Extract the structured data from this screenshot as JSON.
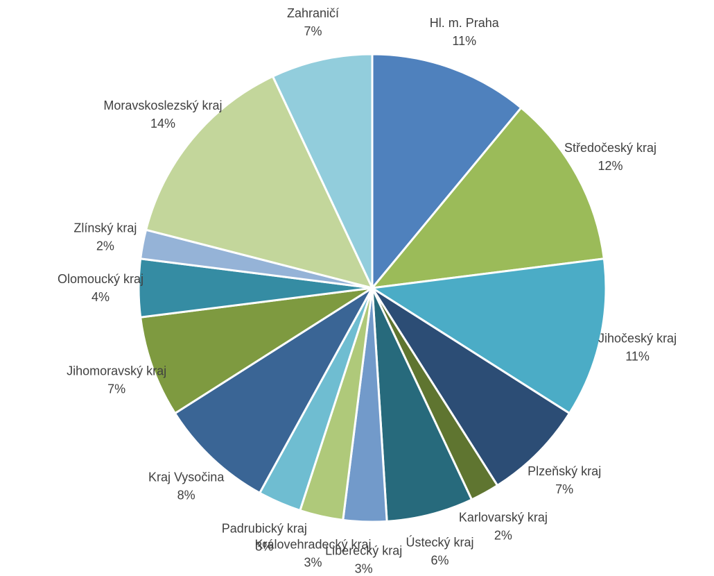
{
  "chart_data": {
    "type": "pie",
    "categories": [
      "Hl. m. Praha",
      "Středočeský kraj",
      "Jihočeský kraj",
      "Plzeňský kraj",
      "Karlovarský kraj",
      "Ústecký kraj",
      "Liberecký kraj",
      "Královehradecký kraj",
      "Padrubický kraj",
      "Kraj Vysočina",
      "Jihomoravský kraj",
      "Olomoucký kraj",
      "Zlínský kraj",
      "Moravskoslezský kraj",
      "Zahraničí"
    ],
    "values": [
      11,
      12,
      11,
      7,
      2,
      6,
      3,
      3,
      3,
      8,
      7,
      4,
      2,
      14,
      7
    ],
    "value_labels": [
      "11%",
      "12%",
      "11%",
      "7%",
      "2%",
      "6%",
      "3%",
      "3%",
      "3%",
      "8%",
      "7%",
      "4%",
      "2%",
      "14%",
      "7%"
    ],
    "colors": [
      "#4f81bd",
      "#9bbb59",
      "#4bacc6",
      "#2c4d75",
      "#5f7530",
      "#276a7c",
      "#729aca",
      "#afc97a",
      "#6fbdd1",
      "#3a6595",
      "#7e9a40",
      "#358ca3",
      "#95b3d7",
      "#c3d69b",
      "#92cddc"
    ]
  }
}
